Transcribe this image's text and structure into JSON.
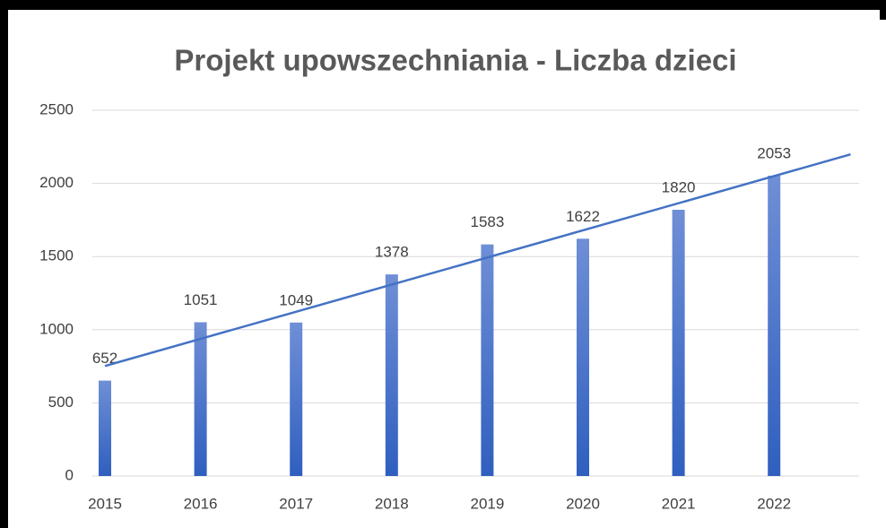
{
  "chart_data": {
    "type": "bar",
    "title": "Projekt upowszechniania - Liczba dzieci",
    "categories": [
      "2015",
      "2016",
      "2017",
      "2018",
      "2019",
      "2020",
      "2021",
      "2022"
    ],
    "values": [
      652,
      1051,
      1049,
      1378,
      1583,
      1622,
      1820,
      2053
    ],
    "color": "#4472c4",
    "trendline_color": "#4472c4",
    "trendline": "linear",
    "ylim": [
      0,
      2500
    ],
    "yticks": [
      0,
      500,
      1000,
      1500,
      2000,
      2500
    ],
    "grid": true
  }
}
